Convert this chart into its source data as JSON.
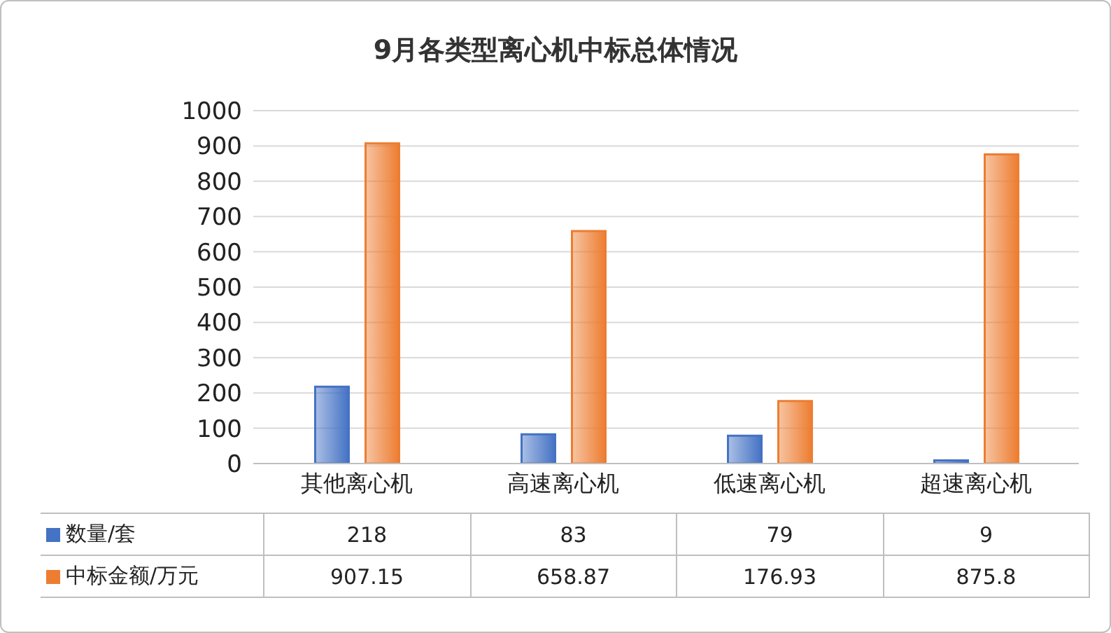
{
  "chart_data": {
    "type": "bar",
    "title": "9月各类型离心机中标总体情况",
    "categories": [
      "其他离心机",
      "高速离心机",
      "低速离心机",
      "超速离心机"
    ],
    "series": [
      {
        "name": "数量/套",
        "color": "#4472c4",
        "values": [
          218,
          83,
          79,
          9
        ]
      },
      {
        "name": "中标金额/万元",
        "color": "#ed7d31",
        "values": [
          907.15,
          658.87,
          176.93,
          875.8
        ]
      }
    ],
    "ylim": [
      0,
      1000
    ],
    "yticks": [
      0,
      100,
      200,
      300,
      400,
      500,
      600,
      700,
      800,
      900,
      1000
    ],
    "grid": "y",
    "legend": "bottom",
    "data_labels": true
  }
}
